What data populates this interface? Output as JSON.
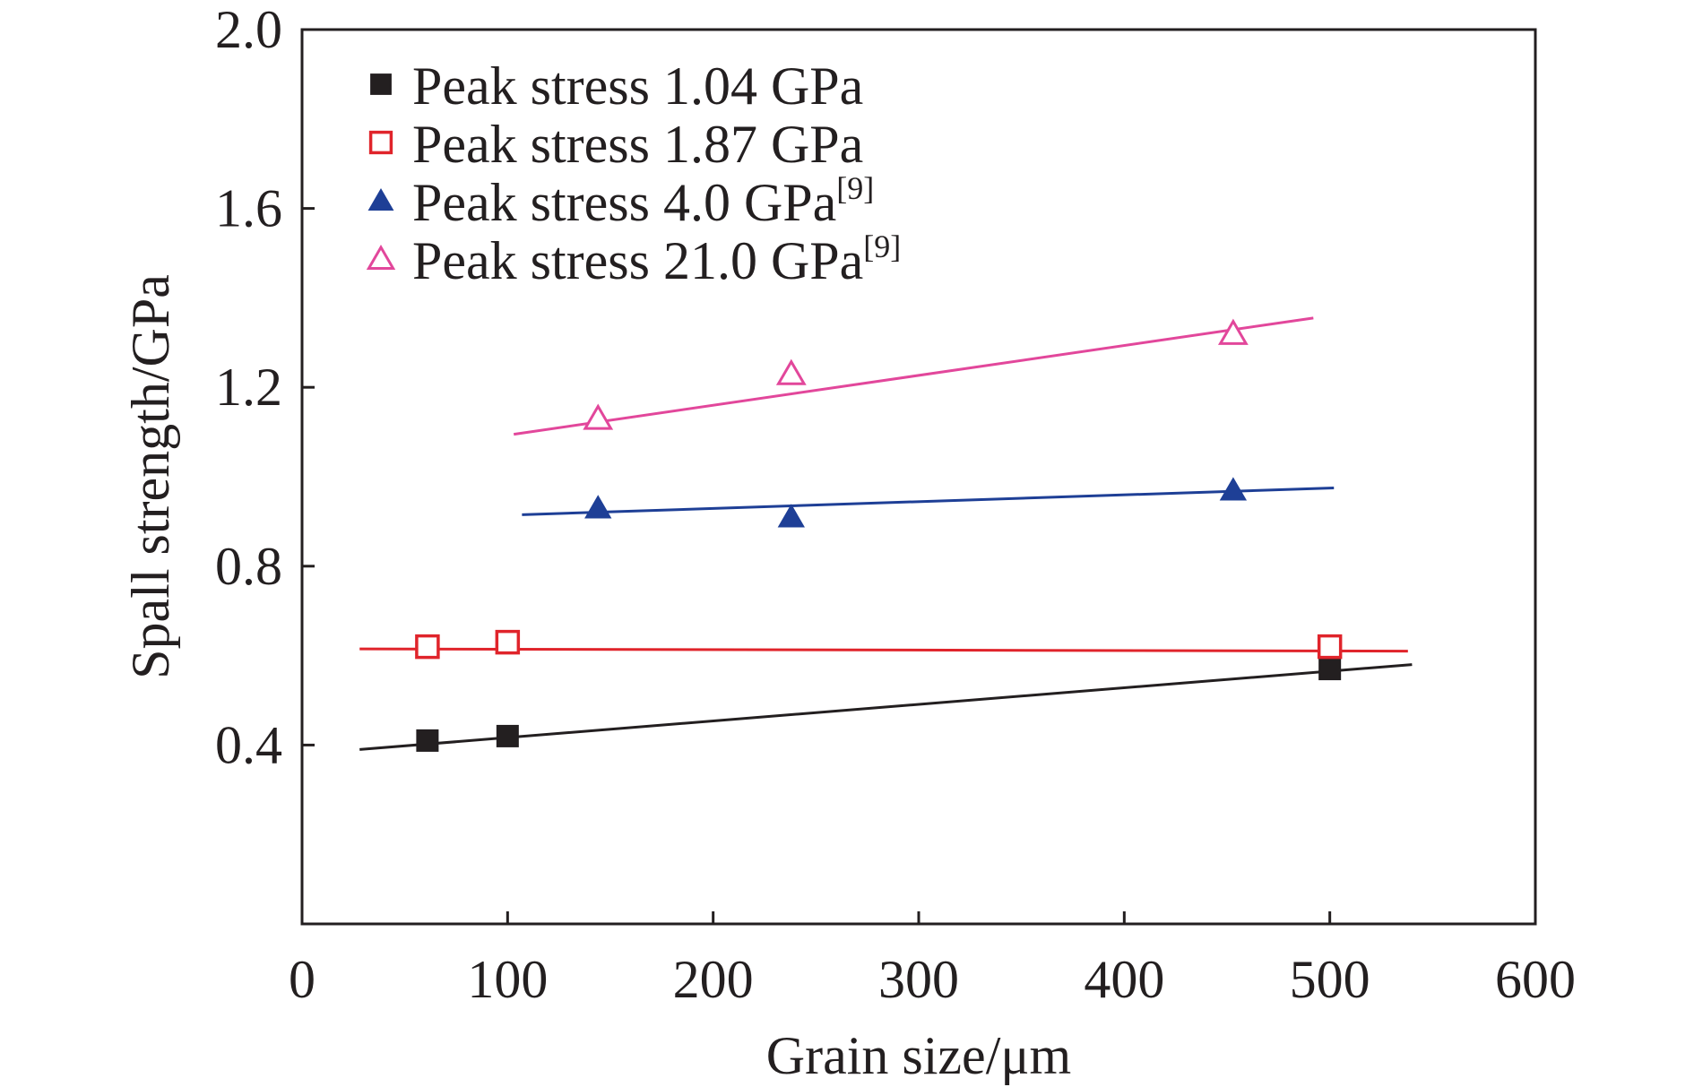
{
  "chart_data": {
    "type": "scatter",
    "title": "",
    "xlabel": "Grain size/μm",
    "ylabel": "Spall strength/GPa",
    "xlim": [
      0,
      600
    ],
    "ylim": [
      0.0,
      2.0
    ],
    "x_ticks": [
      0,
      100,
      200,
      300,
      400,
      500,
      600
    ],
    "x_tick_labels": [
      "0",
      "100",
      "200",
      "300",
      "400",
      "500",
      "600"
    ],
    "y_ticks": [
      0.4,
      0.8,
      1.2,
      1.6,
      2.0
    ],
    "y_tick_labels": [
      "0.4",
      "0.8",
      "1.2",
      "1.6",
      "2.0"
    ],
    "grid": false,
    "legend_position": "top-left",
    "series": [
      {
        "name": "Peak stress 1.04 GPa",
        "ref": "",
        "color": "#231f20",
        "marker": "square-filled",
        "points": [
          [
            61,
            0.41
          ],
          [
            100,
            0.42
          ],
          [
            500,
            0.57
          ]
        ],
        "fit": [
          [
            28,
            0.39
          ],
          [
            540,
            0.58
          ]
        ]
      },
      {
        "name": "Peak stress 1.87 GPa",
        "ref": "",
        "color": "#e0242b",
        "marker": "square-open",
        "points": [
          [
            61,
            0.62
          ],
          [
            100,
            0.63
          ],
          [
            500,
            0.62
          ]
        ],
        "fit": [
          [
            28,
            0.615
          ],
          [
            538,
            0.61
          ]
        ]
      },
      {
        "name": "Peak stress 4.0 GPa",
        "ref": "[9]",
        "color": "#1e3f96",
        "marker": "triangle-filled",
        "points": [
          [
            144,
            0.93
          ],
          [
            238,
            0.91
          ],
          [
            453,
            0.97
          ]
        ],
        "fit": [
          [
            107,
            0.915
          ],
          [
            502,
            0.975
          ]
        ]
      },
      {
        "name": "Peak stress 21.0 GPa",
        "ref": "[9]",
        "color": "#e2479b",
        "marker": "triangle-open",
        "points": [
          [
            144,
            1.13
          ],
          [
            238,
            1.23
          ],
          [
            453,
            1.32
          ]
        ],
        "fit": [
          [
            103,
            1.095
          ],
          [
            492,
            1.355
          ]
        ]
      }
    ]
  }
}
